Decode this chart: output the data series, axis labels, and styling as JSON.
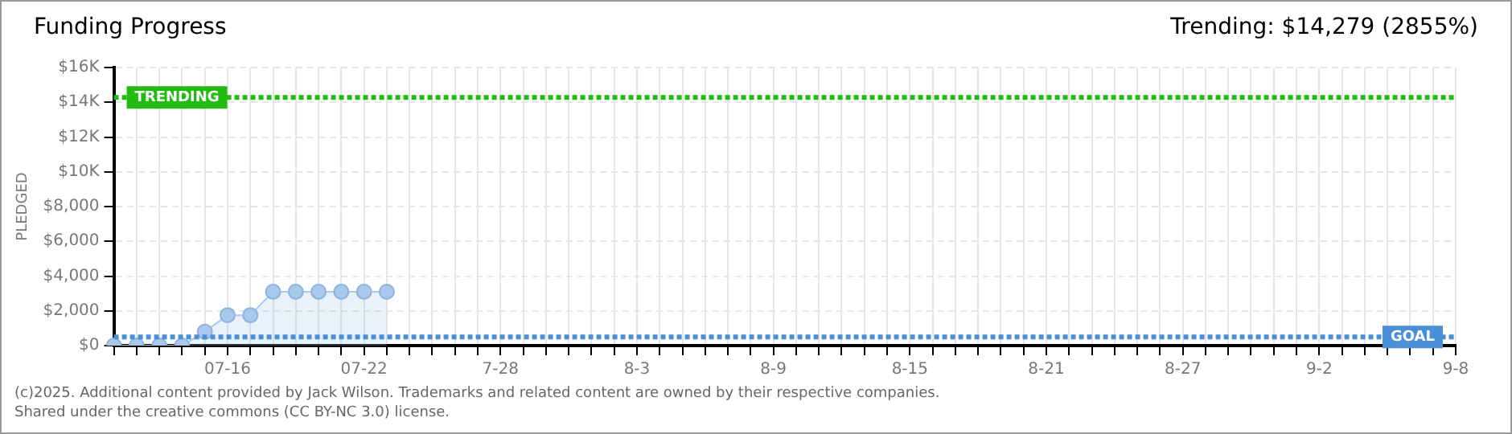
{
  "chart_data": {
    "type": "area",
    "title": "Funding Progress",
    "categories": [
      null,
      null,
      null,
      null,
      null,
      "07-16",
      null,
      null,
      null,
      null,
      null,
      "07-22",
      null,
      null,
      null,
      null,
      null,
      "7-28",
      null,
      null,
      null,
      null,
      null,
      "8-3",
      null,
      null,
      null,
      null,
      null,
      "8-9",
      null,
      null,
      null,
      null,
      null,
      "8-15",
      null,
      null,
      null,
      null,
      null,
      "8-21",
      null,
      null,
      null,
      null,
      null,
      "8-27",
      null,
      null,
      null,
      null,
      null,
      "9-2",
      null,
      null,
      null,
      null,
      null,
      "9-8"
    ],
    "series": [
      {
        "color": "#a9c8ee",
        "values": [
          0,
          0,
          0,
          0,
          800,
          1750,
          1750,
          3100,
          3100,
          3100,
          3100,
          3100,
          3100,
          null,
          null,
          null,
          null,
          null,
          null,
          null,
          null,
          null,
          null,
          null,
          null,
          null,
          null,
          null,
          null,
          null,
          null,
          null,
          null,
          null,
          null,
          null,
          null,
          null,
          null,
          null,
          null,
          null,
          null,
          null,
          null,
          null,
          null,
          null,
          null,
          null,
          null,
          null,
          null,
          null,
          null,
          null,
          null,
          null,
          null,
          null
        ]
      }
    ],
    "ylabel": "PLEDGED",
    "ylim": [
      0,
      16000
    ],
    "yticks": [
      {
        "value": 0,
        "label": "$0"
      },
      {
        "value": 2000,
        "label": "$2,000"
      },
      {
        "value": 4000,
        "label": "$4,000"
      },
      {
        "value": 6000,
        "label": "$6,000"
      },
      {
        "value": 8000,
        "label": "$8,000"
      },
      {
        "value": 10000,
        "label": "$10K"
      },
      {
        "value": 12000,
        "label": "$12K"
      },
      {
        "value": 14000,
        "label": "$14K"
      },
      {
        "value": 16000,
        "label": "$16K"
      }
    ],
    "ref_lines": [
      {
        "axis": "y",
        "value": 14279,
        "label": "TRENDING",
        "color": "#22bb11",
        "line_style": "dotted"
      },
      {
        "axis": "y",
        "value": 500,
        "label": "GOAL",
        "color": "#4a90d9",
        "line_style": "dotted"
      }
    ],
    "annotations": [
      "Trending: $14,279 (2855%)",
      "(c)2025. Additional content provided by Jack Wilson. Trademarks and related content are owned by their respective companies.",
      "Shared under the creative commons (CC BY-NC 3.0) license."
    ],
    "grid": true,
    "marker": "circle",
    "legend": false
  }
}
